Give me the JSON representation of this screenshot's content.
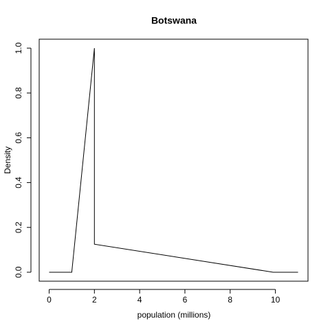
{
  "chart_data": {
    "type": "line",
    "title": "Botswana",
    "x_label": "population (millions)",
    "y_label": "Density",
    "x": [
      0,
      1,
      2,
      2,
      9.9,
      11
    ],
    "series": [
      {
        "color": "#000000",
        "values": [
          0,
          0,
          1,
          0.125,
          0,
          0
        ]
      }
    ],
    "xlim": [
      -0.44,
      11.44
    ],
    "ylim": [
      -0.04,
      1.04
    ],
    "xticks": [
      0,
      2,
      4,
      6,
      8,
      10
    ],
    "yticks": [
      {
        "value": 0,
        "label": "0.0"
      },
      0.2,
      0.4,
      0.6,
      0.8,
      {
        "value": 1,
        "label": "1.0"
      }
    ]
  }
}
